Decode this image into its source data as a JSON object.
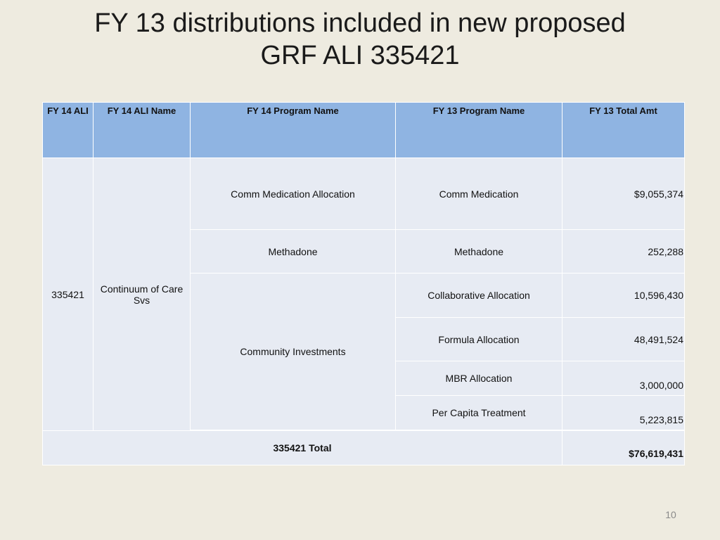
{
  "slide": {
    "title_line1": "FY 13 distributions included in new proposed",
    "title_line2": "GRF ALI 335421",
    "page_number": "10"
  },
  "table": {
    "headers": [
      "FY 14 ALI",
      "FY 14 ALI Name",
      "FY 14 Program Name",
      "FY 13 Program Name",
      "FY 13 Total Amt"
    ],
    "ali": "335421",
    "ali_name": "Continuum of Care Svs",
    "fy14_programs": [
      "Comm Medication Allocation",
      "Methadone",
      "Community Investments"
    ],
    "rows": [
      {
        "fy13_program": "Comm Medication",
        "amount": "$9,055,374"
      },
      {
        "fy13_program": "Methadone",
        "amount": "252,288"
      },
      {
        "fy13_program": "Collaborative Allocation",
        "amount": "10,596,430"
      },
      {
        "fy13_program": "Formula Allocation",
        "amount": "48,491,524"
      },
      {
        "fy13_program": "MBR Allocation",
        "amount": "3,000,000"
      },
      {
        "fy13_program": "Per Capita Treatment",
        "amount": "5,223,815"
      }
    ],
    "total_label": "335421 Total",
    "total_amount": "$76,619,431"
  },
  "colors": {
    "header_bg": "#8fb4e2",
    "cell_bg": "#e7ebf3",
    "slide_bg": "#eeebe0"
  }
}
